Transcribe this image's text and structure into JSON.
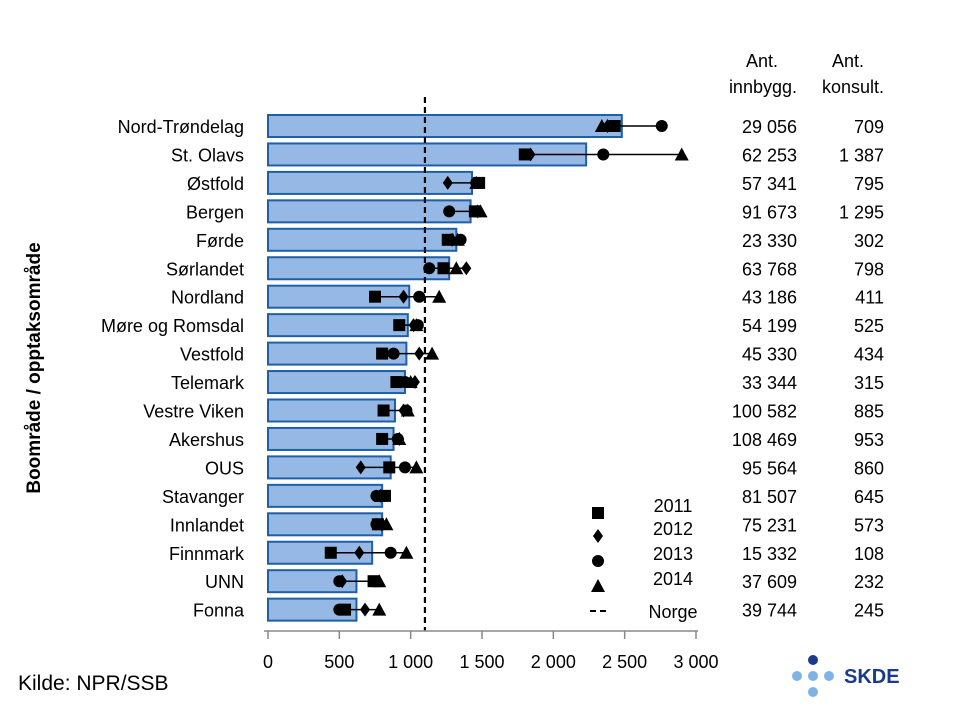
{
  "chart_data": {
    "type": "bar",
    "orientation": "horizontal",
    "title": "",
    "ylabel": "Boområde / opptaksområde",
    "xlabel": "",
    "xlim": [
      0,
      3000
    ],
    "xticks": [
      0,
      500,
      1000,
      1500,
      2000,
      2500,
      3000
    ],
    "xtick_labels": [
      "0",
      "500",
      "1 000",
      "1 500",
      "2 000",
      "2 500",
      "3 000"
    ],
    "reference_line": {
      "name": "Norge",
      "value": 1100
    },
    "column_headers": [
      {
        "line1": "Ant.",
        "line2": "innbygg."
      },
      {
        "line1": "Ant.",
        "line2": "konsult."
      }
    ],
    "categories": [
      "Nord-Trøndelag",
      "St. Olavs",
      "Østfold",
      "Bergen",
      "Førde",
      "Sørlandet",
      "Nordland",
      "Møre og Romsdal",
      "Vestfold",
      "Telemark",
      "Vestre Viken",
      "Akershus",
      "OUS",
      "Stavanger",
      "Innlandet",
      "Finnmark",
      "UNN",
      "Fonna"
    ],
    "values": [
      2480,
      2230,
      1430,
      1420,
      1320,
      1270,
      990,
      980,
      970,
      960,
      890,
      880,
      860,
      800,
      800,
      730,
      620,
      620
    ],
    "series": [
      {
        "name": "2011",
        "marker": "square",
        "values": [
          2430,
          1800,
          1480,
          1450,
          1260,
          1230,
          750,
          920,
          800,
          900,
          810,
          800,
          850,
          820,
          770,
          440,
          740,
          540
        ]
      },
      {
        "name": "2012",
        "marker": "diamond",
        "values": [
          2380,
          1840,
          1260,
          1470,
          1290,
          1390,
          950,
          1020,
          1060,
          1030,
          950,
          920,
          650,
          790,
          800,
          640,
          520,
          680
        ]
      },
      {
        "name": "2013",
        "marker": "circle",
        "values": [
          2760,
          2350,
          1460,
          1270,
          1350,
          1130,
          1060,
          1050,
          880,
          960,
          970,
          910,
          960,
          760,
          760,
          860,
          500,
          500
        ]
      },
      {
        "name": "2014",
        "marker": "triangle",
        "values": [
          2340,
          2900,
          1460,
          1490,
          1330,
          1320,
          1200,
          1040,
          1150,
          1000,
          980,
          920,
          1040,
          790,
          830,
          970,
          780,
          780
        ]
      }
    ],
    "table": {
      "innbyggere": [
        "29 056",
        "62 253",
        "57 341",
        "91 673",
        "23 330",
        "63 768",
        "43 186",
        "54 199",
        "45 330",
        "33 344",
        "100 582",
        "108 469",
        "95 564",
        "81 507",
        "75 231",
        "15 332",
        "37 609",
        "39 744"
      ],
      "konsultasjoner": [
        "709",
        "1 387",
        "795",
        "1 295",
        "302",
        "798",
        "411",
        "525",
        "434",
        "315",
        "885",
        "953",
        "860",
        "645",
        "573",
        "108",
        "232",
        "245"
      ]
    },
    "legend": {
      "placement": "bottom-right",
      "entries": [
        "2011",
        "2012",
        "2013",
        "2014",
        "Norge"
      ]
    },
    "colors": {
      "bar_fill": "#95b9e4",
      "bar_stroke": "#1f5fa8",
      "marker": "#000000"
    }
  },
  "source": "Kilde: NPR/SSB",
  "logo": {
    "text": "SKDE",
    "dot_color": "#1a3a8a",
    "dot_light": "#7db3e6",
    "text_color": "#1a3a8a"
  }
}
